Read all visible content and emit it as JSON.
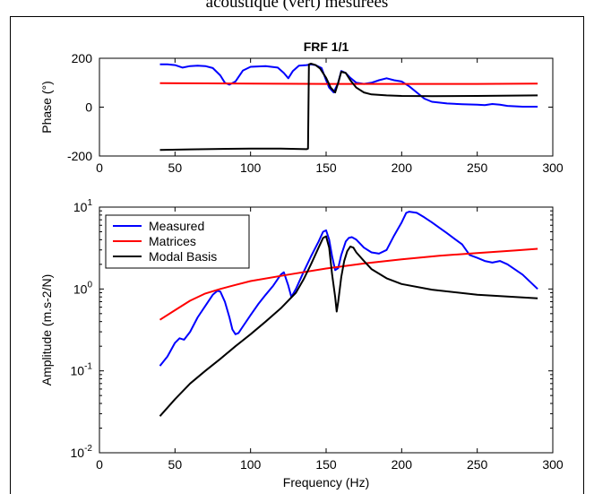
{
  "caption": "acoustique (vert) mesurées",
  "chart_data": [
    {
      "type": "line",
      "title": "FRF 1/1",
      "xlabel": "",
      "ylabel": "Phase (°)",
      "xlim": [
        0,
        300
      ],
      "ylim": [
        -200,
        200
      ],
      "xticks": [
        0,
        50,
        100,
        150,
        200,
        250,
        300
      ],
      "yticks": [
        -200,
        0,
        200
      ],
      "series": [
        {
          "name": "Measured",
          "color": "#0000ff",
          "x": [
            40,
            45,
            50,
            55,
            60,
            65,
            70,
            75,
            80,
            83,
            86,
            90,
            95,
            100,
            110,
            118,
            122,
            125,
            128,
            132,
            137,
            140,
            143,
            147,
            150,
            152,
            155,
            158,
            160,
            163,
            166,
            170,
            175,
            180,
            185,
            190,
            195,
            200,
            205,
            210,
            215,
            220,
            230,
            240,
            250,
            255,
            260,
            265,
            270,
            280,
            290
          ],
          "y": [
            175,
            175,
            172,
            162,
            168,
            170,
            168,
            160,
            130,
            100,
            92,
            105,
            150,
            165,
            168,
            162,
            140,
            118,
            148,
            170,
            172,
            175,
            172,
            160,
            110,
            80,
            60,
            100,
            148,
            140,
            120,
            100,
            95,
            100,
            110,
            118,
            110,
            105,
            85,
            60,
            35,
            22,
            15,
            12,
            10,
            8,
            13,
            10,
            5,
            2,
            2
          ]
        },
        {
          "name": "Matrices",
          "color": "#ff0000",
          "x": [
            40,
            100,
            150,
            200,
            250,
            290
          ],
          "y": [
            98,
            96,
            95,
            95,
            95,
            96
          ]
        },
        {
          "name": "Modal Basis",
          "color": "#000000",
          "x": [
            40,
            60,
            80,
            100,
            120,
            130,
            137,
            138,
            138.6,
            140,
            143,
            146,
            150,
            153,
            156,
            158,
            160,
            163,
            166,
            170,
            175,
            180,
            190,
            200,
            220,
            250,
            290
          ],
          "y": [
            -175,
            -173,
            -171,
            -170,
            -170,
            -171,
            -172,
            -170,
            175,
            178,
            172,
            158,
            120,
            80,
            60,
            100,
            145,
            140,
            110,
            80,
            60,
            52,
            48,
            46,
            45,
            46,
            48
          ]
        }
      ]
    },
    {
      "type": "line",
      "title": "",
      "xlabel": "Frequency (Hz)",
      "ylabel": "Amplitude (m.s-2/N)",
      "yscale": "log",
      "xlim": [
        0,
        300
      ],
      "ylim": [
        0.01,
        10
      ],
      "xticks": [
        0,
        50,
        100,
        150,
        200,
        250,
        300
      ],
      "yticks": [
        0.01,
        0.1,
        1,
        10
      ],
      "ytick_labels": [
        {
          "base": "10",
          "exp": "-2"
        },
        {
          "base": "10",
          "exp": "-1"
        },
        {
          "base": "10",
          "exp": "0"
        },
        {
          "base": "10",
          "exp": "1"
        }
      ],
      "legend": "top-left",
      "series": [
        {
          "name": "Measured",
          "color": "#0000ff",
          "x": [
            40,
            45,
            50,
            53,
            56,
            60,
            65,
            70,
            75,
            78,
            80,
            83,
            86,
            88,
            90,
            92,
            95,
            100,
            105,
            110,
            115,
            120,
            122,
            125,
            127,
            130,
            135,
            140,
            145,
            148,
            150,
            152,
            154,
            156,
            158,
            160,
            163,
            165,
            167,
            170,
            175,
            180,
            185,
            190,
            195,
            200,
            203,
            205,
            210,
            215,
            220,
            230,
            240,
            245,
            250,
            255,
            260,
            265,
            270,
            280,
            290
          ],
          "y": [
            0.115,
            0.15,
            0.22,
            0.25,
            0.24,
            0.3,
            0.45,
            0.62,
            0.85,
            0.95,
            0.93,
            0.7,
            0.45,
            0.32,
            0.28,
            0.29,
            0.35,
            0.48,
            0.65,
            0.85,
            1.1,
            1.5,
            1.6,
            1.1,
            0.8,
            1.0,
            1.6,
            2.5,
            3.8,
            5.0,
            5.2,
            4.0,
            2.5,
            1.7,
            1.8,
            2.6,
            3.8,
            4.2,
            4.3,
            4.0,
            3.2,
            2.8,
            2.7,
            3.0,
            4.5,
            6.5,
            8.5,
            8.8,
            8.5,
            7.5,
            6.5,
            4.8,
            3.5,
            2.6,
            2.4,
            2.2,
            2.1,
            2.2,
            2.0,
            1.5,
            1.0
          ]
        },
        {
          "name": "Matrices",
          "color": "#ff0000",
          "x": [
            40,
            50,
            60,
            70,
            80,
            90,
            100,
            125,
            150,
            175,
            200,
            225,
            250,
            275,
            290
          ],
          "y": [
            0.42,
            0.55,
            0.72,
            0.88,
            1.0,
            1.12,
            1.25,
            1.5,
            1.78,
            2.05,
            2.3,
            2.55,
            2.75,
            2.95,
            3.1
          ]
        },
        {
          "name": "Modal Basis",
          "color": "#000000",
          "x": [
            40,
            50,
            60,
            70,
            80,
            90,
            100,
            110,
            120,
            130,
            135,
            140,
            145,
            148,
            150,
            152,
            154,
            156,
            157,
            158,
            160,
            162,
            164,
            166,
            168,
            170,
            175,
            180,
            190,
            200,
            220,
            250,
            290
          ],
          "y": [
            0.028,
            0.045,
            0.07,
            0.1,
            0.14,
            0.2,
            0.28,
            0.4,
            0.58,
            0.9,
            1.3,
            2.0,
            3.2,
            4.2,
            4.4,
            3.2,
            1.5,
            0.8,
            0.53,
            0.7,
            1.4,
            2.2,
            2.9,
            3.3,
            3.2,
            2.8,
            2.2,
            1.75,
            1.35,
            1.15,
            0.98,
            0.85,
            0.77
          ]
        }
      ]
    }
  ]
}
